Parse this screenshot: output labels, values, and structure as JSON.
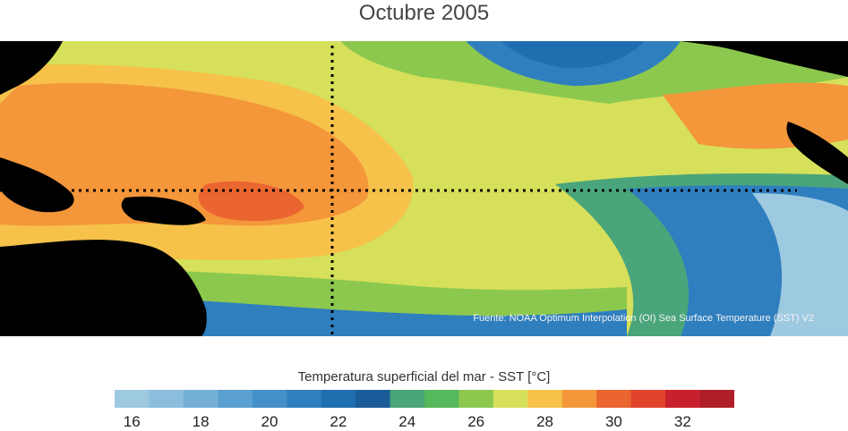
{
  "title": "Octubre 2005",
  "source": "Fuente: NOAA Optimum Interpolation (OI) Sea Surface Temperature (SST) V2",
  "scale": {
    "title": "Temperatura superficial del mar - SST  [°C]",
    "colors": [
      "#9ecae1",
      "#8bbedd",
      "#74b0d8",
      "#5aa0d0",
      "#4590c8",
      "#2f7fbf",
      "#1f6fb0",
      "#1a5c9a",
      "#4aa57a",
      "#55b85a",
      "#8cc84e",
      "#d6e05a",
      "#f6c24a",
      "#f4963a",
      "#ea6530",
      "#e0452c",
      "#c8202c",
      "#b01e28"
    ],
    "tick_labels": [
      "16",
      "18",
      "20",
      "22",
      "24",
      "26",
      "28",
      "30",
      "32"
    ]
  },
  "colors": {
    "land": "#000000",
    "warm_pool": "#f4963a",
    "hot": "#ea6530",
    "warm": "#f6c24a",
    "mild": "#d6e05a",
    "green": "#8cc84e",
    "teal": "#4aa57a",
    "cool": "#2f7fbf",
    "cold": "#9ecae1"
  }
}
